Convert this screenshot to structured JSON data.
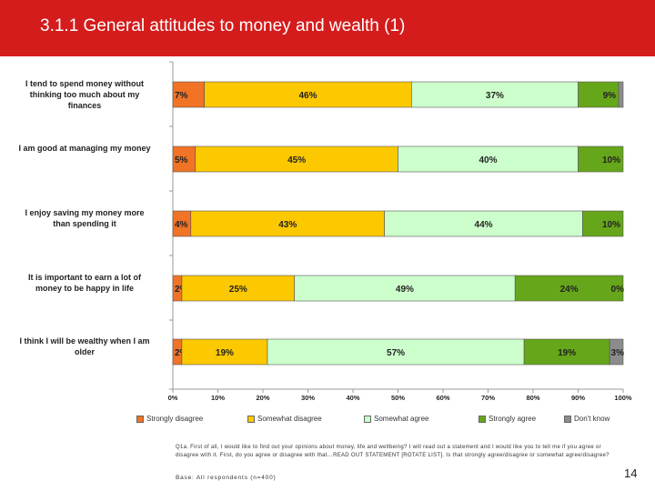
{
  "slide": {
    "title": "3.1.1  General attitudes to money and wealth (1)",
    "question": "Q1a. First of all, I would like to find out your opinions about money, life and wellbeing? I will read out a statement and I would like you to tell me if you agree or disagree with it.  First, do you agree or disagree with that…READ OUT STATEMENT [ROTATE LIST].  Is that strongly agree/disagree or somewhat agree/disagree?",
    "base": "Base: All respondents (n=400)",
    "page_number": "14"
  },
  "colors": {
    "title_bar": "#d41c1c",
    "strongly_disagree": "#f07326",
    "somewhat_disagree": "#fcc800",
    "somewhat_agree": "#ccffcc",
    "strongly_agree": "#66a61a",
    "dont_know": "#8c8c8c"
  },
  "chart_data": {
    "type": "bar",
    "orientation": "horizontal",
    "stacked": true,
    "categories": [
      "I tend to spend money without thinking too much about my finances",
      "I am good at managing my money",
      "I enjoy saving my money more than spending it",
      "It is important to earn a lot of money to be happy in life",
      "I think I will be wealthy when I am older"
    ],
    "series": [
      {
        "name": "Strongly disagree",
        "values": [
          7,
          5,
          4,
          2,
          2
        ],
        "labels": [
          "7%",
          "5%",
          "4%",
          "2%",
          "2%"
        ]
      },
      {
        "name": "Somewhat disagree",
        "values": [
          46,
          45,
          43,
          25,
          19
        ],
        "labels": [
          "46%",
          "45%",
          "43%",
          "25%",
          "19%"
        ]
      },
      {
        "name": "Somewhat agree",
        "values": [
          37,
          40,
          44,
          49,
          57
        ],
        "labels": [
          "37%",
          "40%",
          "44%",
          "49%",
          "57%"
        ]
      },
      {
        "name": "Strongly agree",
        "values": [
          9,
          10,
          10,
          24,
          19
        ],
        "labels": [
          "9%",
          "10%",
          "10%",
          "24%",
          "19%"
        ]
      },
      {
        "name": "Don't know",
        "values": [
          1,
          0,
          0,
          0,
          3
        ],
        "labels": [
          "",
          "",
          "",
          "0%",
          "3%"
        ]
      }
    ],
    "xlim": [
      0,
      100
    ],
    "xticks": [
      "0%",
      "10%",
      "20%",
      "30%",
      "40%",
      "50%",
      "60%",
      "70%",
      "80%",
      "90%",
      "100%"
    ],
    "legend_position": "bottom",
    "grid": false
  }
}
